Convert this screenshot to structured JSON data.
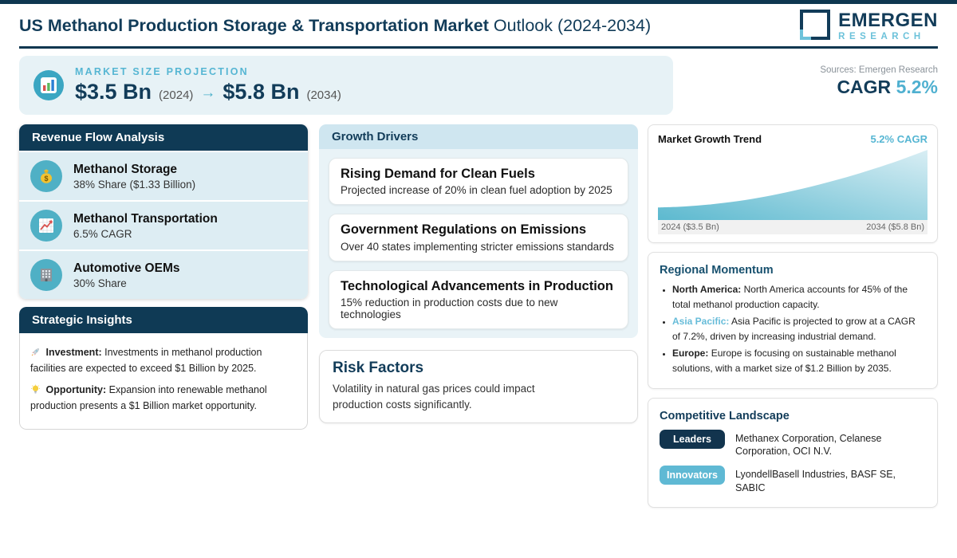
{
  "page": {
    "title_bold": "US Methanol Production Storage & Transportation Market",
    "title_regular": " Outlook (2024-2034)"
  },
  "logo": {
    "icon": "logo-square-icon",
    "line1": "EMERGEN",
    "line2": "RESEARCH"
  },
  "banner": {
    "icon": "bar-chart-icon",
    "label": "MARKET SIZE PROJECTION",
    "start_value": "$3.5 Bn",
    "start_year": "(2024)",
    "arrow": "→",
    "end_value": "$5.8 Bn",
    "end_year": "(2034)"
  },
  "header_right": {
    "sources": "Sources: Emergen Research",
    "cagr_label": "CAGR",
    "cagr_value": "5.2%"
  },
  "revenue_flow": {
    "title": "Revenue Flow Analysis",
    "items": [
      {
        "icon": "money-bag-icon",
        "title": "Methanol Storage",
        "subtitle": "38% Share ($1.33 Billion)"
      },
      {
        "icon": "chart-up-icon",
        "title": "Methanol Transportation",
        "subtitle": "6.5% CAGR"
      },
      {
        "icon": "building-icon",
        "title": "Automotive OEMs",
        "subtitle": "30% Share"
      }
    ]
  },
  "strategic_insights": {
    "title": "Strategic Insights",
    "items": [
      {
        "icon": "rocket-icon",
        "label": "Investment:",
        "text": "Investments in methanol production facilities are expected to exceed $1 Billion by 2025."
      },
      {
        "icon": "lightbulb-icon",
        "label": "Opportunity:",
        "text": "Expansion into renewable methanol production presents a $1 Billion market opportunity."
      }
    ]
  },
  "growth_drivers": {
    "title": "Growth Drivers",
    "cards": [
      {
        "title": "Rising Demand for Clean Fuels",
        "subtitle": "Projected increase of 20% in clean fuel adoption by 2025"
      },
      {
        "title": "Government Regulations on Emissions",
        "subtitle": "Over 40 states implementing stricter emissions standards"
      },
      {
        "title": "Technological Advancements in Production",
        "subtitle": "15% reduction in production costs due to new technologies"
      }
    ]
  },
  "risk_factors": {
    "title": "Risk Factors",
    "text": "Volatility in natural gas prices could impact production costs significantly."
  },
  "chart_data": {
    "type": "area",
    "title": "Market Growth Trend",
    "cagr_label": "5.2% CAGR",
    "x": [
      2024,
      2025,
      2026,
      2027,
      2028,
      2029,
      2030,
      2031,
      2032,
      2033,
      2034
    ],
    "values": [
      3.5,
      3.54,
      3.63,
      3.76,
      3.94,
      4.16,
      4.42,
      4.71,
      5.04,
      5.4,
      5.8
    ],
    "ylim": [
      3.0,
      5.8
    ],
    "x_start_label": "2024 ($3.5 Bn)",
    "x_end_label": "2034 ($5.8 Bn)",
    "grid": false,
    "legend": false,
    "gradient": [
      "#5cb9cf",
      "#d9eef4"
    ]
  },
  "regional_momentum": {
    "title": "Regional Momentum",
    "items": [
      {
        "label": "North America:",
        "text": "North America accounts for 45% of the total methanol production capacity."
      },
      {
        "label": "Asia Pacific:",
        "text": "Asia Pacific is projected to grow at a CAGR of 7.2%, driven by increasing industrial demand."
      },
      {
        "label": "Europe:",
        "text": "Europe is focusing on sustainable methanol solutions, with a market size of $1.2 Billion by 2035."
      }
    ]
  },
  "competitive_landscape": {
    "title": "Competitive Landscape",
    "rows": [
      {
        "badge": "Leaders",
        "badge_color": "#12344e",
        "companies": "Methanex Corporation, Celanese Corporation, OCI N.V."
      },
      {
        "badge": "Innovators",
        "badge_color": "#5fb9d4",
        "companies": "LyondellBasell Industries, BASF SE, SABIC"
      }
    ]
  },
  "colors": {
    "navy": "#123c59",
    "navy_bar": "#0e3750",
    "teal_accent": "#4fb0d0",
    "teal_light": "#56b6d3",
    "banner_bg": "#e7f2f6",
    "item_bg": "#ddedf3",
    "growth_header_bg": "#cfe6f0",
    "growth_body_bg": "#e9f3f7"
  }
}
